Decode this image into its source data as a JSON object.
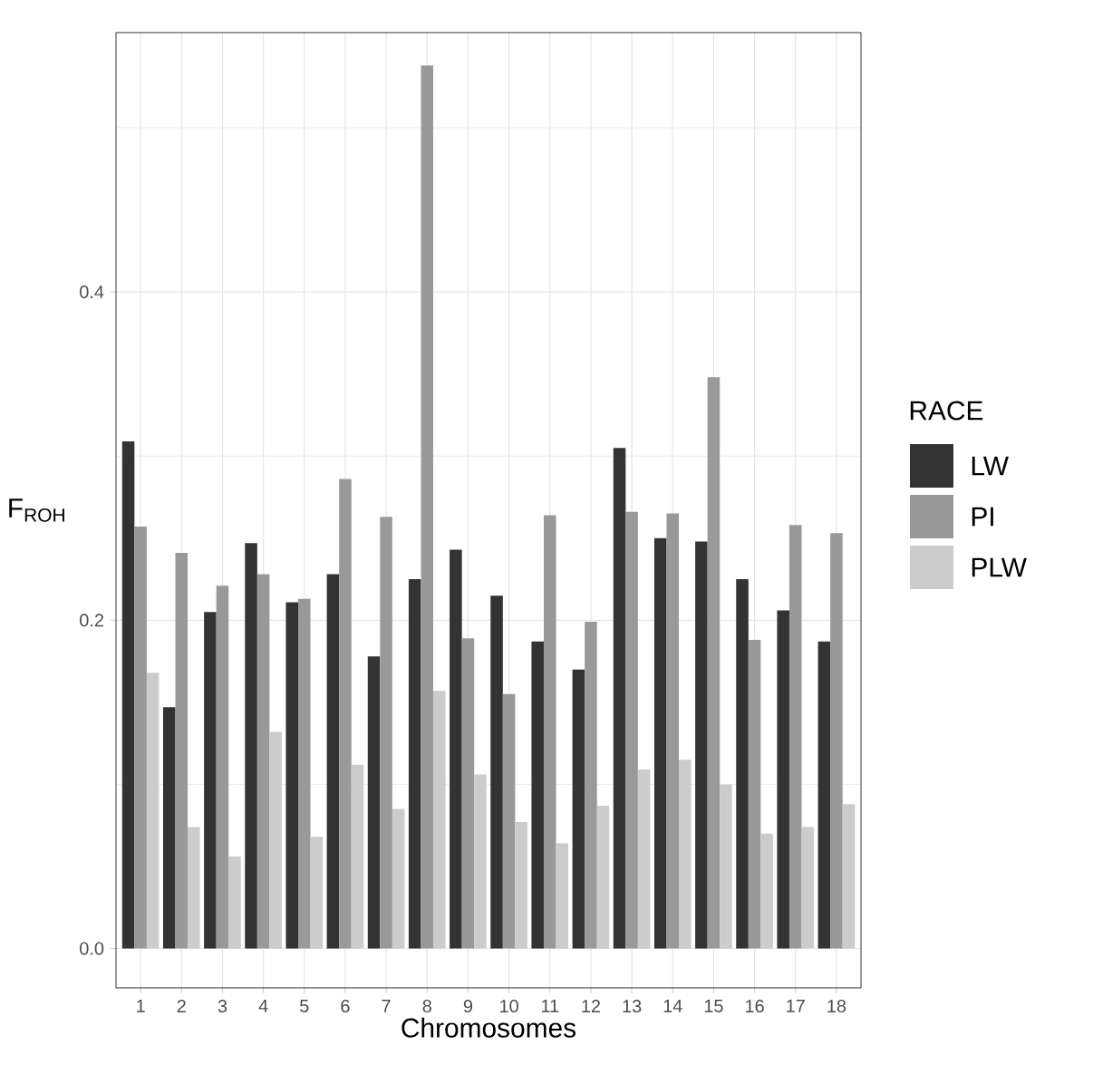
{
  "chart_data": {
    "type": "bar",
    "xlabel": "Chromosomes",
    "ylabel": "F$_{ROH}$",
    "legend_title": "RACE",
    "legend": "right",
    "grid": true,
    "categories": [
      "1",
      "2",
      "3",
      "4",
      "5",
      "6",
      "7",
      "8",
      "9",
      "10",
      "11",
      "12",
      "13",
      "14",
      "15",
      "16",
      "17",
      "18"
    ],
    "ylim": [
      -0.024,
      0.558
    ],
    "yticks": [
      {
        "value": 0,
        "label": "0.0"
      },
      {
        "value": 0.1,
        "label": null
      },
      0.2,
      {
        "value": 0.3,
        "label": null
      },
      0.4,
      {
        "value": 0.5,
        "label": null
      }
    ],
    "series": [
      {
        "name": "LW",
        "color": "#333333",
        "values": [
          0.309,
          0.147,
          0.205,
          0.247,
          0.211,
          0.228,
          0.178,
          0.225,
          0.243,
          0.215,
          0.187,
          0.17,
          0.305,
          0.25,
          0.248,
          0.225,
          0.206,
          0.187
        ]
      },
      {
        "name": "PI",
        "color": "#999999",
        "values": [
          0.257,
          0.241,
          0.221,
          0.228,
          0.213,
          0.286,
          0.263,
          0.538,
          0.189,
          0.155,
          0.264,
          0.199,
          0.266,
          0.265,
          0.348,
          0.188,
          0.258,
          0.253
        ]
      },
      {
        "name": "PLW",
        "color": "#cccccc",
        "values": [
          0.168,
          0.074,
          0.056,
          0.132,
          0.068,
          0.112,
          0.085,
          0.157,
          0.106,
          0.077,
          0.064,
          0.087,
          0.109,
          0.115,
          0.1,
          0.07,
          0.074,
          0.088
        ]
      }
    ]
  }
}
